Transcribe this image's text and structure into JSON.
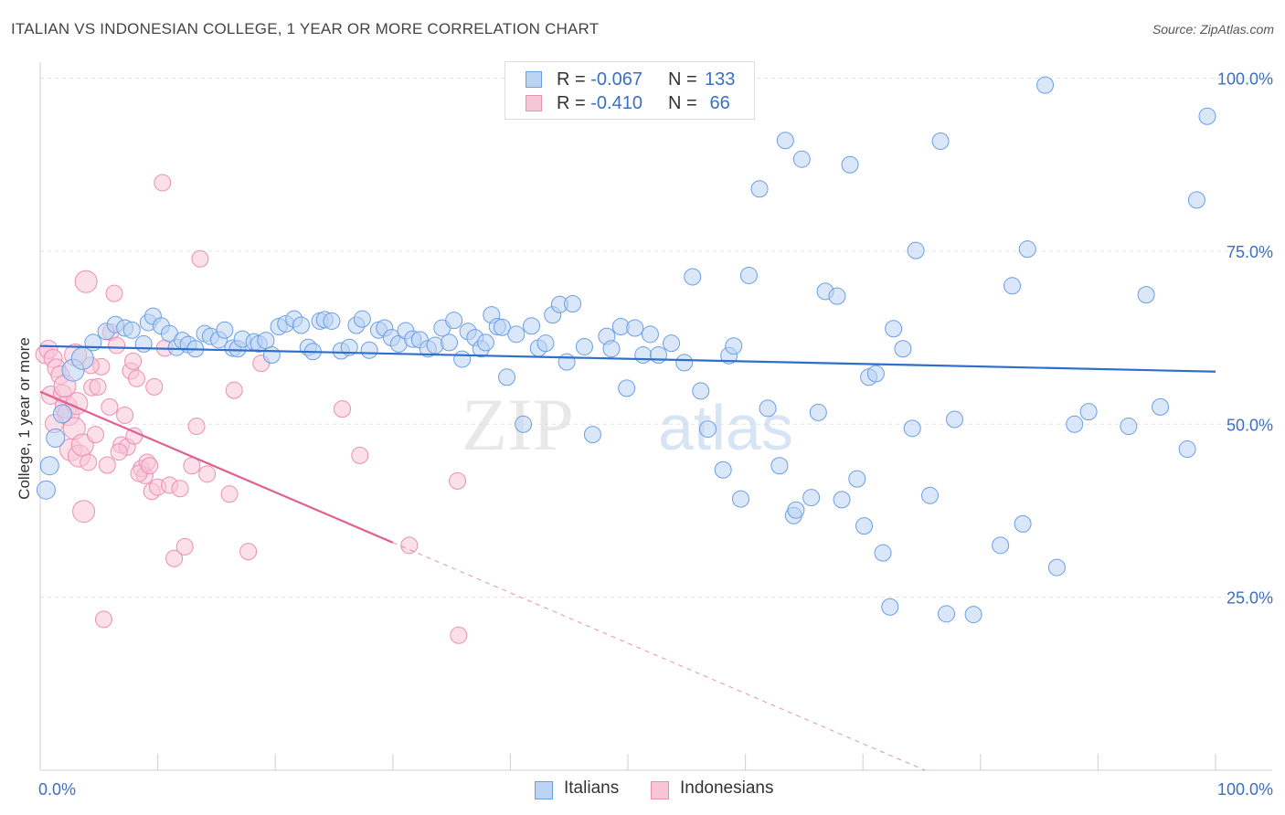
{
  "chart_data": {
    "type": "scatter",
    "title": "ITALIAN VS INDONESIAN COLLEGE, 1 YEAR OR MORE CORRELATION CHART",
    "source": "Source: ZipAtlas.com",
    "xlabel": "",
    "ylabel": "College, 1 year or more",
    "xlim": [
      0,
      100
    ],
    "ylim": [
      0,
      101
    ],
    "x_tick_labels": [
      "0.0%",
      "100.0%"
    ],
    "y_tick_labels": [
      "25.0%",
      "50.0%",
      "75.0%",
      "100.0%"
    ],
    "y_ticks": [
      25,
      50,
      75,
      100
    ],
    "watermark": {
      "zip": "ZIP",
      "atlas": "atlas"
    },
    "stats": [
      {
        "r_label": "R =",
        "r_value": "-0.067",
        "n_label": "N =",
        "n_value": "133"
      },
      {
        "r_label": "R =",
        "r_value": "-0.410",
        "n_label": "N =",
        "n_value": " 66"
      }
    ],
    "series": [
      {
        "name": "Italians",
        "color": "#6a9ee6",
        "fill": "#bcd3f3",
        "trend": {
          "x1": 0,
          "y1": 61.3,
          "x2": 100,
          "y2": 57.6,
          "color": "#2f6fcb"
        },
        "points": [
          [
            0.5,
            40.5
          ],
          [
            0.8,
            44.0
          ],
          [
            1.3,
            48.0
          ],
          [
            1.9,
            51.5
          ],
          [
            2.8,
            57.8
          ],
          [
            3.6,
            59.5
          ],
          [
            4.5,
            61.8
          ],
          [
            5.6,
            63.4
          ],
          [
            6.4,
            64.4
          ],
          [
            7.2,
            63.9
          ],
          [
            7.8,
            63.6
          ],
          [
            8.8,
            61.6
          ],
          [
            9.2,
            64.7
          ],
          [
            9.6,
            65.6
          ],
          [
            10.3,
            64.2
          ],
          [
            11.0,
            63.1
          ],
          [
            11.6,
            61.1
          ],
          [
            12.1,
            62.1
          ],
          [
            12.6,
            61.5
          ],
          [
            13.2,
            60.9
          ],
          [
            14.0,
            63.1
          ],
          [
            14.5,
            62.7
          ],
          [
            15.2,
            62.2
          ],
          [
            15.7,
            63.6
          ],
          [
            16.4,
            61.0
          ],
          [
            16.8,
            60.9
          ],
          [
            17.2,
            62.3
          ],
          [
            18.2,
            61.9
          ],
          [
            18.6,
            61.6
          ],
          [
            19.2,
            62.1
          ],
          [
            19.7,
            60.0
          ],
          [
            20.3,
            64.1
          ],
          [
            20.9,
            64.5
          ],
          [
            21.6,
            65.2
          ],
          [
            22.2,
            64.3
          ],
          [
            22.8,
            61.1
          ],
          [
            23.2,
            60.5
          ],
          [
            23.8,
            64.9
          ],
          [
            24.2,
            65.1
          ],
          [
            24.8,
            64.9
          ],
          [
            25.6,
            60.6
          ],
          [
            26.3,
            61.1
          ],
          [
            26.9,
            64.3
          ],
          [
            27.4,
            65.2
          ],
          [
            28.0,
            60.7
          ],
          [
            28.8,
            63.6
          ],
          [
            29.3,
            63.9
          ],
          [
            29.9,
            62.5
          ],
          [
            30.5,
            61.6
          ],
          [
            31.1,
            63.5
          ],
          [
            31.7,
            62.3
          ],
          [
            32.3,
            62.2
          ],
          [
            33.0,
            60.9
          ],
          [
            33.6,
            61.4
          ],
          [
            34.2,
            63.9
          ],
          [
            34.8,
            61.8
          ],
          [
            35.2,
            65.0
          ],
          [
            35.9,
            59.4
          ],
          [
            36.4,
            63.4
          ],
          [
            37.0,
            62.5
          ],
          [
            37.5,
            60.9
          ],
          [
            37.9,
            61.8
          ],
          [
            38.4,
            65.8
          ],
          [
            38.9,
            64.1
          ],
          [
            39.3,
            64.0
          ],
          [
            39.7,
            56.8
          ],
          [
            40.5,
            63.0
          ],
          [
            41.1,
            50.0
          ],
          [
            41.8,
            64.2
          ],
          [
            42.4,
            61.0
          ],
          [
            43.0,
            61.7
          ],
          [
            43.6,
            65.8
          ],
          [
            44.2,
            67.3
          ],
          [
            44.8,
            59.0
          ],
          [
            45.3,
            67.4
          ],
          [
            46.3,
            61.2
          ],
          [
            48.2,
            62.7
          ],
          [
            47.0,
            48.5
          ],
          [
            48.6,
            60.9
          ],
          [
            49.4,
            64.1
          ],
          [
            49.9,
            55.2
          ],
          [
            50.6,
            63.9
          ],
          [
            51.3,
            60.0
          ],
          [
            51.9,
            63.0
          ],
          [
            52.6,
            60.0
          ],
          [
            53.7,
            61.7
          ],
          [
            54.8,
            58.9
          ],
          [
            55.5,
            71.3
          ],
          [
            56.2,
            54.8
          ],
          [
            56.8,
            49.3
          ],
          [
            58.1,
            43.4
          ],
          [
            58.6,
            59.9
          ],
          [
            59.0,
            61.3
          ],
          [
            59.6,
            39.2
          ],
          [
            60.3,
            71.5
          ],
          [
            61.2,
            84.0
          ],
          [
            61.9,
            52.3
          ],
          [
            62.9,
            44.0
          ],
          [
            63.4,
            91.0
          ],
          [
            64.1,
            36.8
          ],
          [
            64.3,
            37.6
          ],
          [
            64.8,
            88.3
          ],
          [
            65.6,
            39.4
          ],
          [
            66.2,
            51.7
          ],
          [
            66.8,
            69.2
          ],
          [
            67.8,
            68.5
          ],
          [
            68.2,
            39.1
          ],
          [
            68.9,
            87.5
          ],
          [
            69.5,
            42.1
          ],
          [
            70.1,
            35.3
          ],
          [
            70.5,
            56.8
          ],
          [
            71.1,
            57.3
          ],
          [
            71.7,
            31.4
          ],
          [
            72.3,
            23.6
          ],
          [
            73.4,
            60.9
          ],
          [
            74.2,
            49.4
          ],
          [
            75.7,
            39.7
          ],
          [
            76.6,
            90.9
          ],
          [
            77.1,
            22.6
          ],
          [
            77.8,
            50.7
          ],
          [
            79.4,
            22.5
          ],
          [
            81.7,
            32.5
          ],
          [
            82.7,
            70.0
          ],
          [
            83.6,
            35.6
          ],
          [
            85.5,
            99.0
          ],
          [
            86.5,
            29.3
          ],
          [
            88.0,
            50.0
          ],
          [
            89.2,
            51.8
          ],
          [
            92.6,
            49.7
          ],
          [
            94.1,
            68.7
          ],
          [
            95.3,
            52.5
          ],
          [
            97.6,
            46.4
          ],
          [
            98.4,
            82.4
          ],
          [
            99.3,
            94.5
          ],
          [
            72.6,
            63.8
          ],
          [
            74.5,
            75.1
          ],
          [
            84.0,
            75.3
          ]
        ]
      },
      {
        "name": "Indonesians",
        "color": "#ec8fb0",
        "fill": "#f8c5d7",
        "trend": {
          "x1": 0,
          "y1": 54.7,
          "x2": 30,
          "y2": 32.9,
          "dash_to_x": 100,
          "dash_to_y": -18.0,
          "color": "#e0608f"
        },
        "points": [
          [
            0.4,
            60.1
          ],
          [
            0.7,
            60.8
          ],
          [
            0.9,
            54.2
          ],
          [
            1.1,
            59.5
          ],
          [
            1.4,
            58.1
          ],
          [
            1.7,
            57.1
          ],
          [
            1.9,
            54.4
          ],
          [
            2.2,
            52.5
          ],
          [
            2.4,
            51.4
          ],
          [
            2.6,
            46.3
          ],
          [
            2.9,
            49.4
          ],
          [
            3.1,
            53.0
          ],
          [
            3.3,
            45.4
          ],
          [
            3.6,
            47.0
          ],
          [
            3.9,
            70.6
          ],
          [
            4.1,
            44.5
          ],
          [
            4.4,
            55.3
          ],
          [
            4.7,
            48.5
          ],
          [
            4.9,
            55.4
          ],
          [
            5.2,
            58.3
          ],
          [
            5.4,
            21.8
          ],
          [
            5.7,
            44.1
          ],
          [
            6.0,
            63.3
          ],
          [
            6.3,
            68.9
          ],
          [
            6.5,
            61.4
          ],
          [
            6.9,
            47.0
          ],
          [
            7.2,
            51.3
          ],
          [
            7.4,
            46.7
          ],
          [
            7.7,
            57.7
          ],
          [
            8.0,
            48.3
          ],
          [
            8.2,
            56.6
          ],
          [
            8.6,
            43.6
          ],
          [
            8.9,
            42.6
          ],
          [
            9.1,
            44.5
          ],
          [
            9.5,
            40.3
          ],
          [
            9.7,
            55.4
          ],
          [
            10.0,
            40.9
          ],
          [
            10.4,
            84.9
          ],
          [
            10.6,
            61.0
          ],
          [
            11.0,
            41.2
          ],
          [
            11.4,
            30.6
          ],
          [
            11.9,
            40.7
          ],
          [
            12.3,
            32.3
          ],
          [
            13.3,
            49.7
          ],
          [
            13.6,
            73.9
          ],
          [
            14.2,
            42.8
          ],
          [
            16.1,
            39.9
          ],
          [
            16.5,
            54.9
          ],
          [
            17.7,
            31.6
          ],
          [
            18.8,
            58.8
          ],
          [
            25.7,
            52.2
          ],
          [
            27.2,
            45.5
          ],
          [
            31.4,
            32.5
          ],
          [
            35.6,
            19.5
          ],
          [
            35.5,
            41.8
          ],
          [
            3.0,
            60.0
          ],
          [
            2.1,
            55.5
          ],
          [
            5.9,
            52.5
          ],
          [
            8.4,
            42.9
          ],
          [
            3.7,
            37.4
          ],
          [
            6.7,
            46.0
          ],
          [
            1.2,
            50.1
          ],
          [
            9.3,
            44.0
          ],
          [
            4.3,
            58.5
          ],
          [
            7.9,
            59.1
          ],
          [
            12.9,
            44.0
          ]
        ]
      }
    ]
  }
}
